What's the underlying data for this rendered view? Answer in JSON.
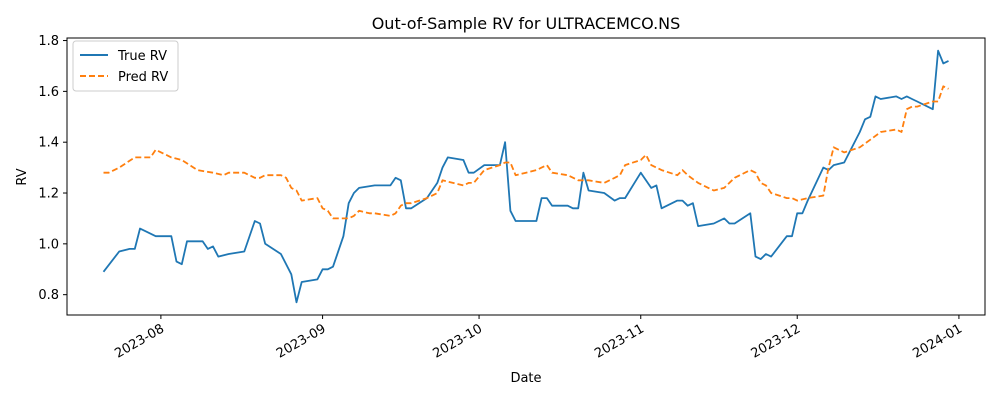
{
  "chart_data": {
    "type": "line",
    "title": "Out-of-Sample RV for ULTRACEMCO.NS",
    "xlabel": "Date",
    "ylabel": "RV",
    "ylim": [
      0.72,
      1.81
    ],
    "xlim": [
      "2023-07-14",
      "2024-01-06"
    ],
    "grid": false,
    "legend_position": "top-left",
    "x_tick_labels": [
      "2023-08",
      "2023-09",
      "2023-10",
      "2023-11",
      "2023-12",
      "2024-01"
    ],
    "x_tick_dates": [
      "2023-08-01",
      "2023-09-01",
      "2023-10-01",
      "2023-11-01",
      "2023-12-01",
      "2024-01-01"
    ],
    "y_tick_labels": [
      "0.8",
      "1.0",
      "1.2",
      "1.4",
      "1.6",
      "1.8"
    ],
    "y_tick_values": [
      0.8,
      1.0,
      1.2,
      1.4,
      1.6,
      1.8
    ],
    "series": [
      {
        "name": "True RV",
        "color": "#1f77b4",
        "style": "solid",
        "points": [
          [
            "2023-07-21",
            0.89
          ],
          [
            "2023-07-24",
            0.97
          ],
          [
            "2023-07-26",
            0.98
          ],
          [
            "2023-07-27",
            0.98
          ],
          [
            "2023-07-28",
            1.06
          ],
          [
            "2023-07-29",
            1.05
          ],
          [
            "2023-07-31",
            1.03
          ],
          [
            "2023-08-03",
            1.03
          ],
          [
            "2023-08-04",
            0.93
          ],
          [
            "2023-08-05",
            0.92
          ],
          [
            "2023-08-06",
            1.01
          ],
          [
            "2023-08-09",
            1.01
          ],
          [
            "2023-08-10",
            0.98
          ],
          [
            "2023-08-11",
            0.99
          ],
          [
            "2023-08-12",
            0.95
          ],
          [
            "2023-08-14",
            0.96
          ],
          [
            "2023-08-17",
            0.97
          ],
          [
            "2023-08-19",
            1.09
          ],
          [
            "2023-08-20",
            1.08
          ],
          [
            "2023-08-21",
            1.0
          ],
          [
            "2023-08-24",
            0.96
          ],
          [
            "2023-08-26",
            0.88
          ],
          [
            "2023-08-27",
            0.77
          ],
          [
            "2023-08-28",
            0.85
          ],
          [
            "2023-08-31",
            0.86
          ],
          [
            "2023-09-01",
            0.9
          ],
          [
            "2023-09-02",
            0.9
          ],
          [
            "2023-09-03",
            0.91
          ],
          [
            "2023-09-05",
            1.03
          ],
          [
            "2023-09-06",
            1.16
          ],
          [
            "2023-09-07",
            1.2
          ],
          [
            "2023-09-08",
            1.22
          ],
          [
            "2023-09-11",
            1.23
          ],
          [
            "2023-09-14",
            1.23
          ],
          [
            "2023-09-15",
            1.26
          ],
          [
            "2023-09-16",
            1.25
          ],
          [
            "2023-09-17",
            1.14
          ],
          [
            "2023-09-18",
            1.14
          ],
          [
            "2023-09-21",
            1.18
          ],
          [
            "2023-09-23",
            1.24
          ],
          [
            "2023-09-24",
            1.3
          ],
          [
            "2023-09-25",
            1.34
          ],
          [
            "2023-09-28",
            1.33
          ],
          [
            "2023-09-29",
            1.28
          ],
          [
            "2023-09-30",
            1.28
          ],
          [
            "2023-10-02",
            1.31
          ],
          [
            "2023-10-05",
            1.31
          ],
          [
            "2023-10-06",
            1.4
          ],
          [
            "2023-10-07",
            1.13
          ],
          [
            "2023-10-08",
            1.09
          ],
          [
            "2023-10-12",
            1.09
          ],
          [
            "2023-10-13",
            1.18
          ],
          [
            "2023-10-14",
            1.18
          ],
          [
            "2023-10-15",
            1.15
          ],
          [
            "2023-10-18",
            1.15
          ],
          [
            "2023-10-19",
            1.14
          ],
          [
            "2023-10-20",
            1.14
          ],
          [
            "2023-10-21",
            1.28
          ],
          [
            "2023-10-22",
            1.21
          ],
          [
            "2023-10-25",
            1.2
          ],
          [
            "2023-10-27",
            1.17
          ],
          [
            "2023-10-28",
            1.18
          ],
          [
            "2023-10-29",
            1.18
          ],
          [
            "2023-11-01",
            1.28
          ],
          [
            "2023-11-03",
            1.22
          ],
          [
            "2023-11-04",
            1.23
          ],
          [
            "2023-11-05",
            1.14
          ],
          [
            "2023-11-08",
            1.17
          ],
          [
            "2023-11-09",
            1.17
          ],
          [
            "2023-11-10",
            1.15
          ],
          [
            "2023-11-11",
            1.16
          ],
          [
            "2023-11-12",
            1.07
          ],
          [
            "2023-11-15",
            1.08
          ],
          [
            "2023-11-17",
            1.1
          ],
          [
            "2023-11-18",
            1.08
          ],
          [
            "2023-11-19",
            1.08
          ],
          [
            "2023-11-22",
            1.12
          ],
          [
            "2023-11-23",
            0.95
          ],
          [
            "2023-11-24",
            0.94
          ],
          [
            "2023-11-25",
            0.96
          ],
          [
            "2023-11-26",
            0.95
          ],
          [
            "2023-11-29",
            1.03
          ],
          [
            "2023-11-30",
            1.03
          ],
          [
            "2023-12-01",
            1.12
          ],
          [
            "2023-12-02",
            1.12
          ],
          [
            "2023-12-03",
            1.17
          ],
          [
            "2023-12-06",
            1.3
          ],
          [
            "2023-12-07",
            1.29
          ],
          [
            "2023-12-08",
            1.31
          ],
          [
            "2023-12-10",
            1.32
          ],
          [
            "2023-12-13",
            1.44
          ],
          [
            "2023-12-14",
            1.49
          ],
          [
            "2023-12-15",
            1.5
          ],
          [
            "2023-12-16",
            1.58
          ],
          [
            "2023-12-17",
            1.57
          ],
          [
            "2023-12-20",
            1.58
          ],
          [
            "2023-12-21",
            1.57
          ],
          [
            "2023-12-22",
            1.58
          ],
          [
            "2023-12-23",
            1.57
          ],
          [
            "2023-12-24",
            1.56
          ],
          [
            "2023-12-27",
            1.53
          ],
          [
            "2023-12-28",
            1.76
          ],
          [
            "2023-12-29",
            1.71
          ],
          [
            "2023-12-30",
            1.72
          ]
        ]
      },
      {
        "name": "Pred RV",
        "color": "#ff7f0e",
        "style": "dashed",
        "points": [
          [
            "2023-07-21",
            1.28
          ],
          [
            "2023-07-22",
            1.28
          ],
          [
            "2023-07-24",
            1.3
          ],
          [
            "2023-07-27",
            1.34
          ],
          [
            "2023-07-29",
            1.34
          ],
          [
            "2023-07-30",
            1.34
          ],
          [
            "2023-07-31",
            1.37
          ],
          [
            "2023-08-03",
            1.34
          ],
          [
            "2023-08-05",
            1.33
          ],
          [
            "2023-08-08",
            1.29
          ],
          [
            "2023-08-11",
            1.28
          ],
          [
            "2023-08-13",
            1.27
          ],
          [
            "2023-08-14",
            1.28
          ],
          [
            "2023-08-17",
            1.28
          ],
          [
            "2023-08-19",
            1.26
          ],
          [
            "2023-08-20",
            1.26
          ],
          [
            "2023-08-21",
            1.27
          ],
          [
            "2023-08-24",
            1.27
          ],
          [
            "2023-08-25",
            1.26
          ],
          [
            "2023-08-26",
            1.22
          ],
          [
            "2023-08-27",
            1.21
          ],
          [
            "2023-08-28",
            1.17
          ],
          [
            "2023-08-31",
            1.18
          ],
          [
            "2023-09-01",
            1.14
          ],
          [
            "2023-09-02",
            1.13
          ],
          [
            "2023-09-03",
            1.1
          ],
          [
            "2023-09-06",
            1.1
          ],
          [
            "2023-09-07",
            1.11
          ],
          [
            "2023-09-08",
            1.13
          ],
          [
            "2023-09-10",
            1.12
          ],
          [
            "2023-09-11",
            1.12
          ],
          [
            "2023-09-14",
            1.11
          ],
          [
            "2023-09-15",
            1.12
          ],
          [
            "2023-09-16",
            1.15
          ],
          [
            "2023-09-17",
            1.16
          ],
          [
            "2023-09-18",
            1.16
          ],
          [
            "2023-09-21",
            1.18
          ],
          [
            "2023-09-23",
            1.2
          ],
          [
            "2023-09-24",
            1.25
          ],
          [
            "2023-09-28",
            1.23
          ],
          [
            "2023-09-29",
            1.24
          ],
          [
            "2023-09-30",
            1.24
          ],
          [
            "2023-10-02",
            1.29
          ],
          [
            "2023-10-05",
            1.31
          ],
          [
            "2023-10-06",
            1.32
          ],
          [
            "2023-10-07",
            1.32
          ],
          [
            "2023-10-08",
            1.27
          ],
          [
            "2023-10-10",
            1.28
          ],
          [
            "2023-10-12",
            1.29
          ],
          [
            "2023-10-13",
            1.3
          ],
          [
            "2023-10-14",
            1.31
          ],
          [
            "2023-10-15",
            1.28
          ],
          [
            "2023-10-18",
            1.27
          ],
          [
            "2023-10-20",
            1.25
          ],
          [
            "2023-10-21",
            1.25
          ],
          [
            "2023-10-22",
            1.25
          ],
          [
            "2023-10-25",
            1.24
          ],
          [
            "2023-10-27",
            1.26
          ],
          [
            "2023-10-28",
            1.27
          ],
          [
            "2023-10-29",
            1.31
          ],
          [
            "2023-11-01",
            1.33
          ],
          [
            "2023-11-02",
            1.35
          ],
          [
            "2023-11-03",
            1.31
          ],
          [
            "2023-11-05",
            1.29
          ],
          [
            "2023-11-08",
            1.27
          ],
          [
            "2023-11-09",
            1.29
          ],
          [
            "2023-11-10",
            1.27
          ],
          [
            "2023-11-12",
            1.24
          ],
          [
            "2023-11-15",
            1.21
          ],
          [
            "2023-11-17",
            1.22
          ],
          [
            "2023-11-19",
            1.26
          ],
          [
            "2023-11-22",
            1.29
          ],
          [
            "2023-11-23",
            1.28
          ],
          [
            "2023-11-24",
            1.24
          ],
          [
            "2023-11-25",
            1.23
          ],
          [
            "2023-11-26",
            1.2
          ],
          [
            "2023-11-29",
            1.18
          ],
          [
            "2023-11-30",
            1.18
          ],
          [
            "2023-12-01",
            1.17
          ],
          [
            "2023-12-03",
            1.18
          ],
          [
            "2023-12-06",
            1.19
          ],
          [
            "2023-12-07",
            1.3
          ],
          [
            "2023-12-08",
            1.38
          ],
          [
            "2023-12-10",
            1.36
          ],
          [
            "2023-12-13",
            1.38
          ],
          [
            "2023-12-15",
            1.41
          ],
          [
            "2023-12-17",
            1.44
          ],
          [
            "2023-12-20",
            1.45
          ],
          [
            "2023-12-21",
            1.44
          ],
          [
            "2023-12-22",
            1.53
          ],
          [
            "2023-12-23",
            1.54
          ],
          [
            "2023-12-24",
            1.54
          ],
          [
            "2023-12-27",
            1.56
          ],
          [
            "2023-12-28",
            1.56
          ],
          [
            "2023-12-29",
            1.62
          ],
          [
            "2023-12-30",
            1.61
          ]
        ]
      }
    ]
  }
}
